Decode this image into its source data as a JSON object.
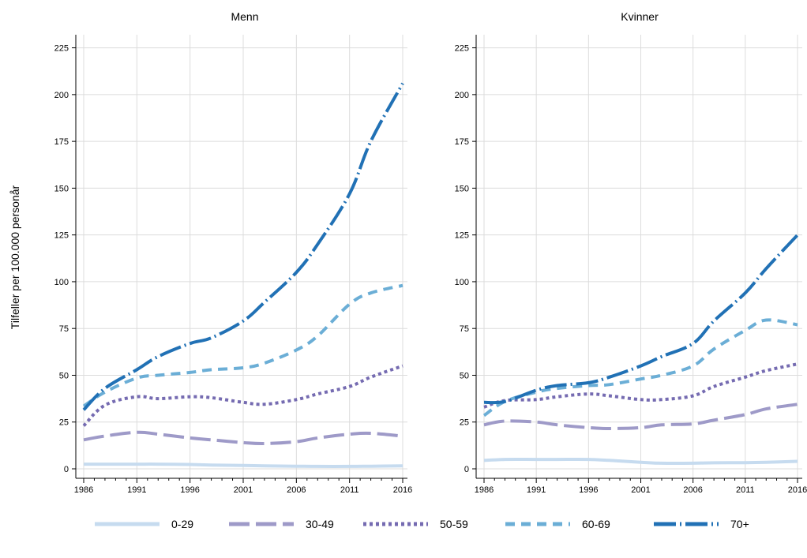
{
  "chart_data": {
    "type": "line",
    "ylabel": "Tilfeller per 100.000 personår",
    "ylim": [
      0,
      225
    ],
    "yticks": [
      0,
      25,
      50,
      75,
      100,
      125,
      150,
      175,
      200,
      225
    ],
    "xlim": [
      1986,
      2016
    ],
    "xticks": [
      1986,
      1991,
      1996,
      2001,
      2006,
      2011,
      2016
    ],
    "grid": true,
    "legend_placement": "bottom",
    "legend": [
      {
        "name": "0-29",
        "color": "#c6dbef",
        "style": "solid"
      },
      {
        "name": "30-49",
        "color": "#9e9ac8",
        "style": "longdash"
      },
      {
        "name": "50-59",
        "color": "#756bb1",
        "style": "dot"
      },
      {
        "name": "60-69",
        "color": "#6baed6",
        "style": "dash"
      },
      {
        "name": "70+",
        "color": "#2171b5",
        "style": "dashdot"
      }
    ],
    "panels": [
      {
        "title": "Menn",
        "x": [
          1986,
          1988,
          1991,
          1993,
          1996,
          1998,
          2001,
          2003,
          2006,
          2008,
          2011,
          2013,
          2016
        ],
        "series": [
          {
            "name": "0-29",
            "values": [
              2.5,
              2.5,
              2.5,
              2.5,
              2.3,
              2,
              1.8,
              1.6,
              1.4,
              1.3,
              1.3,
              1.4,
              1.6
            ]
          },
          {
            "name": "30-49",
            "values": [
              15.5,
              17.5,
              19.5,
              18.5,
              16.5,
              15.5,
              14,
              13.5,
              14.5,
              16.5,
              18.5,
              19,
              17.5
            ]
          },
          {
            "name": "50-59",
            "values": [
              23,
              34,
              38.5,
              37.5,
              38.5,
              38,
              35.5,
              34.5,
              37,
              40,
              44,
              49,
              55
            ]
          },
          {
            "name": "60-69",
            "values": [
              33.5,
              41,
              48.5,
              50,
              51.5,
              53,
              54,
              56.5,
              63.5,
              71,
              88,
              94,
              98
            ]
          },
          {
            "name": "70+",
            "values": [
              31.5,
              43,
              53,
              60,
              67,
              70,
              79,
              89,
              105,
              120,
              147,
              175,
              206
            ]
          }
        ]
      },
      {
        "title": "Kvinner",
        "x": [
          1986,
          1988,
          1991,
          1993,
          1996,
          1998,
          2001,
          2003,
          2006,
          2008,
          2011,
          2013,
          2016
        ],
        "series": [
          {
            "name": "0-29",
            "values": [
              4.5,
              5,
              5,
              5,
              5,
              4.5,
              3.5,
              3,
              3,
              3.2,
              3.3,
              3.5,
              4
            ]
          },
          {
            "name": "30-49",
            "values": [
              23.5,
              25.5,
              25,
              23.5,
              22,
              21.5,
              22,
              23.5,
              24,
              26,
              29,
              32,
              34.5
            ]
          },
          {
            "name": "50-59",
            "values": [
              33,
              36.5,
              37,
              38.5,
              40,
              39,
              37,
              37,
              39,
              44,
              49,
              52.5,
              56
            ]
          },
          {
            "name": "60-69",
            "values": [
              28.5,
              36,
              41,
              43,
              44.5,
              45,
              48,
              50,
              55,
              64,
              74,
              79.5,
              77
            ]
          },
          {
            "name": "70+",
            "values": [
              35.5,
              36,
              42,
              44.5,
              46,
              49,
              55,
              60,
              67,
              79,
              94,
              107,
              125
            ]
          }
        ]
      }
    ]
  }
}
